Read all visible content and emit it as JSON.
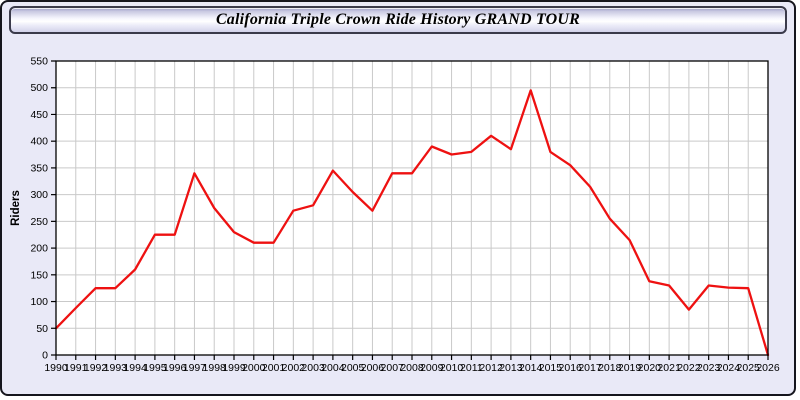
{
  "window": {
    "title": "California Triple Crown Ride History GRAND TOUR"
  },
  "colors": {
    "page_background": "#e9e9f7",
    "plot_background": "#ffffff",
    "grid": "#c9c9c9",
    "axis": "#000000",
    "line": "#ee1111",
    "tick_text": "#000000"
  },
  "chart_data": {
    "type": "line",
    "title": "California Triple Crown Ride History GRAND TOUR",
    "xlabel": "",
    "ylabel": "Riders",
    "x": [
      1990,
      1991,
      1992,
      1993,
      1994,
      1995,
      1996,
      1997,
      1998,
      1999,
      2000,
      2001,
      2002,
      2003,
      2004,
      2005,
      2006,
      2007,
      2008,
      2009,
      2010,
      2011,
      2012,
      2013,
      2014,
      2015,
      2016,
      2017,
      2018,
      2019,
      2020,
      2021,
      2022,
      2023,
      2024,
      2025,
      2026
    ],
    "series": [
      {
        "name": "Riders",
        "values": [
          50,
          88,
          125,
          125,
          160,
          225,
          225,
          340,
          275,
          230,
          210,
          210,
          270,
          280,
          345,
          305,
          270,
          340,
          340,
          390,
          375,
          380,
          410,
          385,
          495,
          380,
          355,
          315,
          255,
          215,
          138,
          130,
          85,
          130,
          126,
          125,
          0
        ]
      }
    ],
    "ylim": [
      0,
      550
    ],
    "y_ticks": [
      0,
      50,
      100,
      150,
      200,
      250,
      300,
      350,
      400,
      450,
      500,
      550
    ],
    "grid": true,
    "legend": "none"
  }
}
